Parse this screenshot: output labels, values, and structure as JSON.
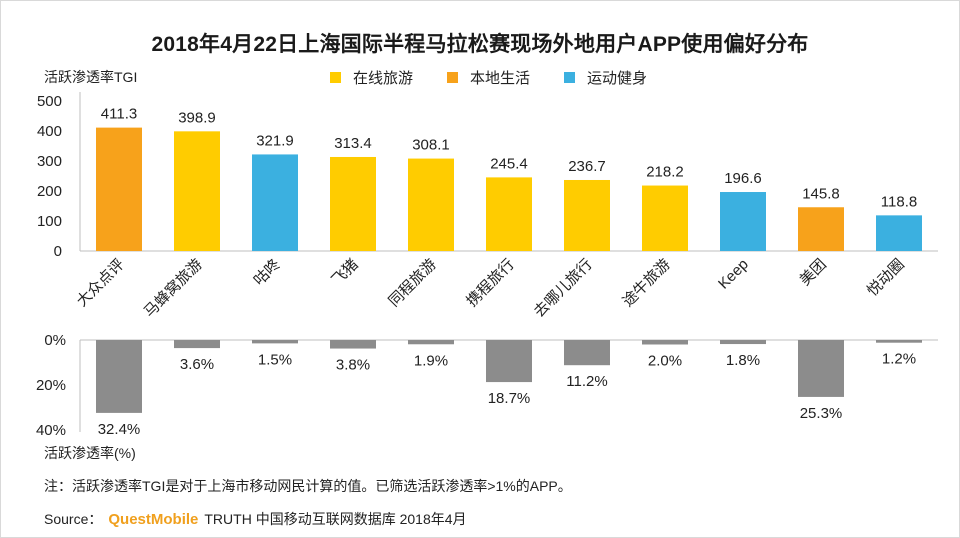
{
  "title": "2018年4月22日上海国际半程马拉松赛现场外地用户APP使用偏好分布",
  "legend": [
    {
      "label": "在线旅游",
      "color": "#ffcc00"
    },
    {
      "label": "本地生活",
      "color": "#f7a21b"
    },
    {
      "label": "运动健身",
      "color": "#3bb0e0"
    }
  ],
  "note": "注：活跃渗透率TGI是对于上海市移动网民计算的值。已筛选活跃渗透率>1%的APP。",
  "source": {
    "label": "Source：",
    "brand": "QuestMobile",
    "text": "TRUTH 中国移动互联网数据库 2018年4月"
  },
  "chart_data": [
    {
      "type": "bar",
      "ylabel": "活跃渗透率TGI",
      "ylim": [
        0,
        500
      ],
      "yticks": [
        "0",
        "100",
        "200",
        "300",
        "400",
        "500"
      ],
      "categories": [
        "大众点评",
        "马蜂窝旅游",
        "咕咚",
        "飞猪",
        "同程旅游",
        "携程旅行",
        "去哪儿旅行",
        "途牛旅游",
        "Keep",
        "美团",
        "悦动圈"
      ],
      "groups": [
        "本地生活",
        "在线旅游",
        "运动健身",
        "在线旅游",
        "在线旅游",
        "在线旅游",
        "在线旅游",
        "在线旅游",
        "运动健身",
        "本地生活",
        "运动健身"
      ],
      "values": [
        411.3,
        398.9,
        321.9,
        313.4,
        308.1,
        245.4,
        236.7,
        218.2,
        196.6,
        145.8,
        118.8
      ],
      "value_labels": [
        "411.3",
        "398.9",
        "321.9",
        "313.4",
        "308.1",
        "245.4",
        "236.7",
        "218.2",
        "196.6",
        "145.8",
        "118.8"
      ]
    },
    {
      "type": "bar",
      "ylabel": "活跃渗透率(%)",
      "ylim": [
        0,
        40
      ],
      "inverted": true,
      "yticks": [
        "0%",
        "20%",
        "40%"
      ],
      "categories": [
        "大众点评",
        "马蜂窝旅游",
        "咕咚",
        "飞猪",
        "同程旅游",
        "携程旅行",
        "去哪儿旅行",
        "途牛旅游",
        "Keep",
        "美团",
        "悦动圈"
      ],
      "values": [
        32.4,
        3.6,
        1.5,
        3.8,
        1.9,
        18.7,
        11.2,
        2.0,
        1.8,
        25.3,
        1.2
      ],
      "value_labels": [
        "32.4%",
        "3.6%",
        "1.5%",
        "3.8%",
        "1.9%",
        "18.7%",
        "11.2%",
        "2.0%",
        "1.8%",
        "25.3%",
        "1.2%"
      ],
      "color": "#8c8c8c"
    }
  ]
}
